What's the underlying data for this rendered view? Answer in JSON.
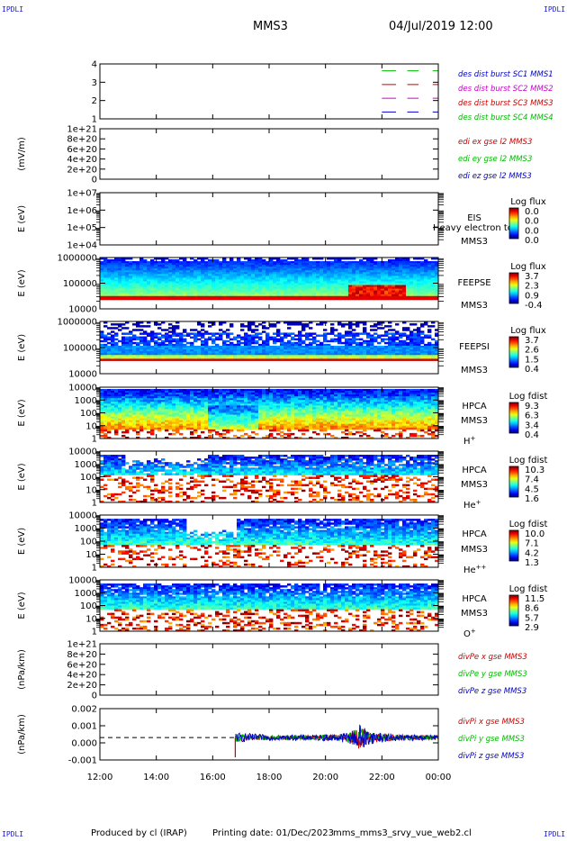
{
  "corners": {
    "top_left": "IPDLI",
    "top_right": "IPDLI",
    "bottom_left": "IPDLI",
    "bottom_right": "IPDLI"
  },
  "header": {
    "spacecraft": "MMS3",
    "date": "04/Jul/2019 12:00"
  },
  "footer": {
    "produced_by": "Produced by cl (IRAP)",
    "printing_date": "Printing date: 01/Dec/2023",
    "filename": "mms_mms3_srvy_vue_web2.cl"
  },
  "colors": {
    "black": "#000000",
    "red": "#cc0000",
    "green": "#00bb00",
    "blue": "#0000cc",
    "magenta": "#cc00cc",
    "orange": "#ff8800"
  },
  "chart_data": [
    {
      "type": "line",
      "id": "burst",
      "ylabel": "",
      "yticks": [
        "1",
        "2",
        "3",
        "4"
      ],
      "ylim": [
        0.5,
        4.5
      ],
      "x_range": [
        "12:00",
        "00:00"
      ],
      "legend": [
        {
          "text": "des dist burst SC1 MMS1",
          "color": "#0000cc"
        },
        {
          "text": "des dist burst SC2 MMS2",
          "color": "#cc00cc"
        },
        {
          "text": "des dist burst SC3 MMS3",
          "color": "#cc0000"
        },
        {
          "text": "des dist burst SC4 MMS4",
          "color": "#00bb00"
        }
      ],
      "segments": [
        {
          "level": 4,
          "color": "#00bb00",
          "x_hours": [
            22.0,
            22.5,
            22.9,
            23.3,
            23.8,
            24.0
          ]
        },
        {
          "level": 3,
          "color": "#cc0000",
          "x_hours": [
            22.0,
            22.5,
            22.9,
            23.3,
            23.8,
            24.0
          ]
        },
        {
          "level": 2,
          "color": "#cc00cc",
          "x_hours": [
            22.0,
            22.5,
            22.9,
            23.3,
            23.8,
            24.0
          ]
        },
        {
          "level": 1,
          "color": "#0000cc",
          "x_hours": [
            22.0,
            22.5,
            22.9,
            23.3,
            23.8,
            24.0
          ]
        }
      ]
    },
    {
      "type": "line",
      "id": "edi",
      "ylabel": "(mV/m)",
      "yticks": [
        "0",
        "2e+20",
        "4e+20",
        "6e+20",
        "8e+20",
        "1e+21"
      ],
      "ylim": [
        0,
        1e+21
      ],
      "dashed_zero": true,
      "legend": [
        {
          "text": "edi ex gse l2 MMS3",
          "color": "#cc0000"
        },
        {
          "text": "edi ey gse l2 MMS3",
          "color": "#00bb00"
        },
        {
          "text": "edi ez gse l2 MMS3",
          "color": "#0000cc"
        }
      ]
    },
    {
      "type": "heatmap",
      "id": "eis",
      "ylabel": "E (eV)",
      "yticks": [
        "1e+04",
        "1e+05",
        "1e+06",
        "1e+07"
      ],
      "log": true,
      "labels": [
        "EIS",
        "MMS3"
      ],
      "overlay_text": "Heavy electron to",
      "colorbar": {
        "title": "Log flux",
        "ticks": [
          "0.0",
          "0.0",
          "0.0",
          "0.0"
        ]
      },
      "empty": true
    },
    {
      "type": "heatmap",
      "id": "feepse",
      "ylabel": "E (eV)",
      "yticks": [
        "10000",
        "100000",
        "1000000"
      ],
      "log": true,
      "labels": [
        "FEEPSE",
        "MMS3"
      ],
      "colorbar": {
        "title": "Log flux",
        "ticks": [
          "3.7",
          "2.3",
          "0.9",
          "-0.4"
        ]
      }
    },
    {
      "type": "heatmap",
      "id": "feepsi",
      "ylabel": "E (eV)",
      "yticks": [
        "10000",
        "100000",
        "1000000"
      ],
      "log": true,
      "labels": [
        "FEEPSI",
        "MMS3"
      ],
      "colorbar": {
        "title": "Log flux",
        "ticks": [
          "3.7",
          "2.6",
          "1.5",
          "0.4"
        ]
      }
    },
    {
      "type": "heatmap",
      "id": "hpca_h",
      "ylabel": "E (eV)",
      "yticks": [
        "1",
        "10",
        "100",
        "1000",
        "10000"
      ],
      "log": true,
      "labels": [
        "HPCA",
        "MMS3"
      ],
      "species": "H",
      "species_sup": "+",
      "colorbar": {
        "title": "Log fdist",
        "ticks": [
          "9.3",
          "6.3",
          "3.4",
          "0.4"
        ]
      }
    },
    {
      "type": "heatmap",
      "id": "hpca_he",
      "ylabel": "E (eV)",
      "yticks": [
        "1",
        "10",
        "100",
        "1000",
        "10000"
      ],
      "log": true,
      "labels": [
        "HPCA",
        "MMS3"
      ],
      "species": "He",
      "species_sup": "+",
      "colorbar": {
        "title": "Log fdist",
        "ticks": [
          "10.3",
          "7.4",
          "4.5",
          "1.6"
        ]
      }
    },
    {
      "type": "heatmap",
      "id": "hpca_hepp",
      "ylabel": "E (eV)",
      "yticks": [
        "1",
        "10",
        "100",
        "1000",
        "10000"
      ],
      "log": true,
      "labels": [
        "HPCA",
        "MMS3"
      ],
      "species": "He",
      "species_sup": "++",
      "colorbar": {
        "title": "Log fdist",
        "ticks": [
          "10.0",
          "7.1",
          "4.2",
          "1.3"
        ]
      }
    },
    {
      "type": "heatmap",
      "id": "hpca_o",
      "ylabel": "E (eV)",
      "yticks": [
        "1",
        "10",
        "100",
        "1000",
        "10000"
      ],
      "log": true,
      "labels": [
        "HPCA",
        "MMS3"
      ],
      "species": "O",
      "species_sup": "+",
      "colorbar": {
        "title": "Log fdist",
        "ticks": [
          "11.5",
          "8.6",
          "5.7",
          "2.9"
        ]
      }
    },
    {
      "type": "line",
      "id": "divpe",
      "ylabel": "(nPa/km)",
      "yticks": [
        "0",
        "2e+20",
        "4e+20",
        "6e+20",
        "8e+20",
        "1e+21"
      ],
      "ylim": [
        0,
        1e+21
      ],
      "dashed_zero": true,
      "legend": [
        {
          "text": "divPe x gse MMS3",
          "color": "#cc0000"
        },
        {
          "text": "divPe y gse MMS3",
          "color": "#00bb00"
        },
        {
          "text": "divPe z gse MMS3",
          "color": "#0000cc"
        }
      ]
    },
    {
      "type": "line",
      "id": "divpi",
      "ylabel": "(nPa/km)",
      "yticks": [
        "-0.001",
        "0.000",
        "0.001",
        "0.002"
      ],
      "ylim": [
        -0.0017,
        0.0022
      ],
      "dashed_zero": true,
      "legend": [
        {
          "text": "divPi x gse MMS3",
          "color": "#cc0000"
        },
        {
          "text": "divPi y gse MMS3",
          "color": "#00bb00"
        },
        {
          "text": "divPi z gse MMS3",
          "color": "#0000cc"
        }
      ],
      "data_start_hour": 16.8,
      "envelope": [
        {
          "x": 16.8,
          "amp": 0.0004
        },
        {
          "x": 18.0,
          "amp": 0.0002
        },
        {
          "x": 19.5,
          "amp": 0.00022
        },
        {
          "x": 20.5,
          "amp": 0.0003
        },
        {
          "x": 21.0,
          "amp": 0.0006
        },
        {
          "x": 21.2,
          "amp": 0.0011
        },
        {
          "x": 21.6,
          "amp": 0.0005
        },
        {
          "x": 22.5,
          "amp": 0.00025
        },
        {
          "x": 24.0,
          "amp": 0.0002
        }
      ]
    }
  ],
  "xaxis": {
    "tick_labels": [
      "12:00",
      "14:00",
      "16:00",
      "18:00",
      "20:00",
      "22:00",
      "00:00"
    ],
    "hours": [
      12,
      14,
      16,
      18,
      20,
      22,
      24
    ]
  }
}
